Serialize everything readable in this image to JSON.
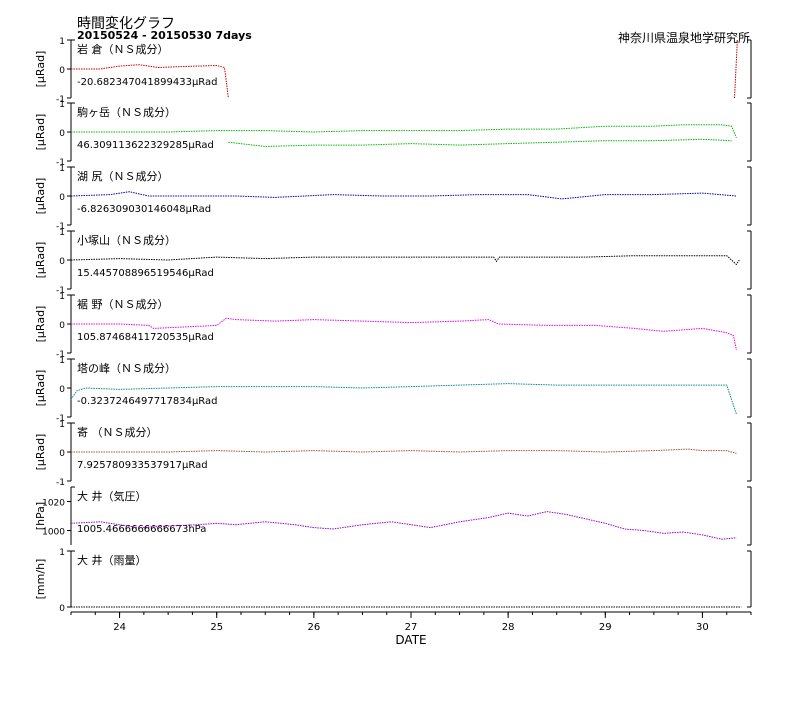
{
  "title": "時間変化グラフ",
  "subtitle": "20150524 - 20150530 7days",
  "organization": "神奈川県温泉地学研究所",
  "x_axis_label": "DATE",
  "colors": {
    "iwakura": "#cc0000",
    "komagatake": "#00bb00",
    "koshiri": "#0000aa",
    "kozukayama": "#000000",
    "susono": "#ee00ee",
    "tonomine": "#008b8b",
    "yoriki": "#a0522d",
    "oi_pressure": "#9900cc",
    "oi_rain": "#000000"
  },
  "chart_data": [
    {
      "type": "line",
      "label": "岩 倉（ＮＳ成分）",
      "unit": "[μRad]",
      "value_text": "-20.682347041899433μRad",
      "color": "#cc0000",
      "y_ticks": [
        "1",
        "0",
        "-1"
      ],
      "ylim": [
        -1,
        1
      ],
      "x": [
        23.5,
        23.8,
        24.0,
        24.2,
        24.4,
        24.6,
        24.8,
        25.0,
        25.08,
        25.12
      ],
      "y": [
        0.0,
        0.0,
        0.1,
        0.15,
        0.05,
        0.08,
        0.1,
        0.12,
        0.05,
        -1.0
      ],
      "extra_x": [
        30.33,
        30.36
      ],
      "extra_y": [
        -1.0,
        1.0
      ]
    },
    {
      "type": "line",
      "label": "駒ヶ岳（ＮＳ成分）",
      "unit": "[μRad]",
      "value_text": "46.309113622329285μRad",
      "color": "#00bb00",
      "y_ticks": [
        "1",
        "0",
        "-1"
      ],
      "ylim": [
        -1,
        1
      ],
      "x": [
        23.5,
        24.0,
        24.5,
        25.0,
        25.5,
        26.0,
        26.5,
        27.0,
        27.5,
        28.0,
        28.5,
        29.0,
        29.5,
        29.8,
        30.2,
        30.3,
        30.35
      ],
      "y": [
        0.0,
        0.0,
        0.0,
        0.05,
        0.05,
        0.0,
        0.05,
        0.05,
        0.05,
        0.1,
        0.1,
        0.2,
        0.2,
        0.25,
        0.25,
        0.2,
        -0.2
      ],
      "extra_x": [
        25.12,
        25.5,
        26.0,
        26.5,
        27.0,
        27.5,
        28.0,
        28.5,
        29.0,
        29.5,
        30.0,
        30.3
      ],
      "extra_y": [
        -0.35,
        -0.5,
        -0.45,
        -0.45,
        -0.4,
        -0.45,
        -0.4,
        -0.35,
        -0.3,
        -0.3,
        -0.25,
        -0.3
      ]
    },
    {
      "type": "line",
      "label": "湖 尻（ＮＳ成分）",
      "unit": "[μRad]",
      "value_text": "-6.826309030146048μRad",
      "color": "#0000aa",
      "y_ticks": [
        "1",
        "0",
        "-1"
      ],
      "ylim": [
        -1,
        1
      ],
      "x": [
        23.5,
        23.9,
        24.1,
        24.3,
        24.8,
        25.2,
        25.6,
        26.2,
        26.7,
        27.2,
        27.7,
        28.2,
        28.55,
        29.0,
        29.5,
        30.0,
        30.35
      ],
      "y": [
        0.0,
        0.05,
        0.15,
        0.0,
        0.0,
        0.0,
        -0.05,
        0.05,
        0.0,
        0.0,
        0.05,
        0.05,
        -0.1,
        0.05,
        0.05,
        0.1,
        0.0
      ]
    },
    {
      "type": "line",
      "label": "小塚山（ＮＳ成分）",
      "unit": "[μRad]",
      "value_text": "15.445708896519546μRad",
      "color": "#000000",
      "y_ticks": [
        "1",
        "0",
        "-1"
      ],
      "ylim": [
        -1,
        1
      ],
      "x": [
        23.5,
        24.0,
        24.5,
        25.0,
        25.5,
        26.0,
        26.5,
        27.0,
        27.5,
        27.85,
        27.88,
        27.91,
        28.3,
        28.8,
        29.3,
        29.8,
        30.25,
        30.35,
        30.38
      ],
      "y": [
        0.0,
        0.05,
        0.0,
        0.1,
        0.05,
        0.1,
        0.1,
        0.1,
        0.1,
        0.1,
        -0.05,
        0.1,
        0.1,
        0.1,
        0.15,
        0.15,
        0.15,
        -0.15,
        0.0
      ]
    },
    {
      "type": "line",
      "label": "裾 野（ＮＳ成分）",
      "unit": "[μRad]",
      "value_text": "105.87468411720535μRad",
      "color": "#ee00ee",
      "y_ticks": [
        "1",
        "0",
        "-1"
      ],
      "ylim": [
        -1,
        1
      ],
      "x": [
        23.5,
        24.0,
        24.3,
        24.35,
        25.0,
        25.1,
        25.2,
        25.6,
        26.0,
        26.5,
        27.0,
        27.5,
        27.8,
        27.9,
        28.4,
        28.9,
        29.3,
        29.6,
        30.0,
        30.25,
        30.32,
        30.35
      ],
      "y": [
        0.0,
        0.0,
        -0.05,
        -0.15,
        -0.05,
        0.2,
        0.15,
        0.1,
        0.15,
        0.1,
        0.05,
        0.1,
        0.15,
        0.0,
        -0.05,
        -0.05,
        -0.15,
        -0.25,
        -0.15,
        -0.3,
        -0.4,
        -0.9
      ]
    },
    {
      "type": "line",
      "label": "塔の峰（ＮＳ成分）",
      "unit": "[μRad]",
      "value_text": "-0.3237246497717834μRad",
      "color": "#008b8b",
      "y_ticks": [
        "1",
        "0",
        "-1"
      ],
      "ylim": [
        -1,
        1
      ],
      "x": [
        23.5,
        23.56,
        23.65,
        24.0,
        24.5,
        25.0,
        25.2,
        25.5,
        26.0,
        26.5,
        27.0,
        27.5,
        28.0,
        28.5,
        29.0,
        29.5,
        30.0,
        30.25,
        30.35
      ],
      "y": [
        -0.4,
        -0.1,
        0.0,
        -0.05,
        0.0,
        0.05,
        0.05,
        0.05,
        0.05,
        0.0,
        0.05,
        0.1,
        0.15,
        0.1,
        0.1,
        0.1,
        0.1,
        0.1,
        -0.9
      ]
    },
    {
      "type": "line",
      "label": "寄 （ＮＳ成分）",
      "unit": "[μRad]",
      "value_text": "7.925780933537917μRad",
      "color": "#a0522d",
      "y_ticks": [
        "1",
        "0",
        "-1"
      ],
      "ylim": [
        -1,
        1
      ],
      "x": [
        23.5,
        24.0,
        24.5,
        25.0,
        25.5,
        26.0,
        26.5,
        27.0,
        27.5,
        28.0,
        28.5,
        29.0,
        29.5,
        29.85,
        30.0,
        30.25,
        30.35
      ],
      "y": [
        0.0,
        0.0,
        0.0,
        0.05,
        0.0,
        0.05,
        0.0,
        0.05,
        0.0,
        0.05,
        0.05,
        0.0,
        0.05,
        0.1,
        0.05,
        0.05,
        -0.05
      ]
    },
    {
      "type": "line",
      "label": "大 井（気圧）",
      "unit": "[hPa]",
      "value_text": "1005.4666666666673hPa",
      "color": "#9900cc",
      "y_ticks": [
        "1020",
        "1000"
      ],
      "ylim": [
        990,
        1030
      ],
      "x": [
        23.5,
        23.8,
        24.0,
        24.2,
        24.5,
        24.8,
        25.0,
        25.2,
        25.5,
        25.8,
        26.0,
        26.2,
        26.5,
        26.8,
        27.0,
        27.2,
        27.5,
        27.8,
        28.0,
        28.2,
        28.4,
        28.6,
        28.8,
        29.0,
        29.2,
        29.4,
        29.6,
        29.8,
        30.0,
        30.2,
        30.35
      ],
      "y": [
        1005,
        1006,
        1004,
        1002,
        1003,
        1004,
        1005,
        1004,
        1006,
        1004,
        1002,
        1001,
        1004,
        1006,
        1004,
        1002,
        1006,
        1009,
        1012,
        1010,
        1013,
        1011,
        1008,
        1005,
        1001,
        1000,
        998,
        999,
        997,
        994,
        995
      ]
    },
    {
      "type": "line",
      "label": "大 井（雨量）",
      "unit": "[mm/h]",
      "value_text": "",
      "color": "#000000",
      "y_ticks": [
        "1",
        "0"
      ],
      "ylim": [
        0,
        1
      ],
      "x": [
        23.5,
        30.4
      ],
      "y": [
        0,
        0
      ]
    }
  ],
  "x_ticks": [
    "24",
    "25",
    "26",
    "27",
    "28",
    "29",
    "30"
  ],
  "x_tick_values": [
    24,
    25,
    26,
    27,
    28,
    29,
    30
  ]
}
